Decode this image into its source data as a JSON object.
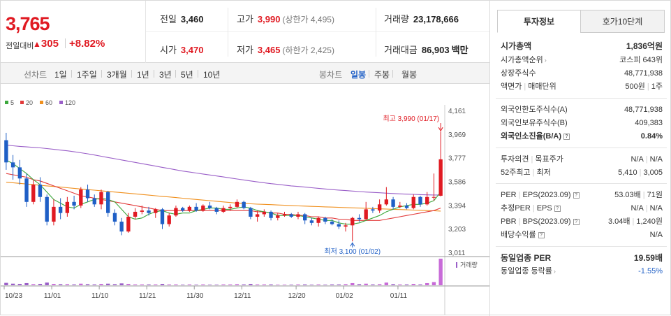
{
  "summary": {
    "current_price": "3,765",
    "change_label": "전일대비",
    "change_arrow": "▲",
    "change_value": "305",
    "change_pct": "+8.82%",
    "prev_close_label": "전일",
    "prev_close": "3,460",
    "high_label": "고가",
    "high": "3,990",
    "upper_limit": "(상한가 4,495)",
    "volume_label": "거래량",
    "volume": "23,178,666",
    "open_label": "시가",
    "open": "3,470",
    "low_label": "저가",
    "low": "3,465",
    "lower_limit": "(하한가 2,425)",
    "amount_label": "거래대금",
    "amount": "86,903",
    "amount_unit": "백만"
  },
  "toolbar": {
    "line_label": "선차트",
    "line_ranges": [
      "1일",
      "1주일",
      "3개월",
      "1년",
      "3년",
      "5년",
      "10년"
    ],
    "candle_label": "봉차트",
    "candle_ranges": [
      "일봉",
      "주봉",
      "월봉"
    ],
    "active_candle": "일봉"
  },
  "colors": {
    "up": "#e01a22",
    "down": "#1f5fc6",
    "ma5": "#3ca83c",
    "ma20": "#e23a3a",
    "ma60": "#f0901e",
    "ma120": "#9a5fc8"
  },
  "chart_data": {
    "type": "candlestick",
    "legend": [
      {
        "name": "5",
        "color": "#3ca83c"
      },
      {
        "name": "20",
        "color": "#e23a3a"
      },
      {
        "name": "60",
        "color": "#f0901e"
      },
      {
        "name": "120",
        "color": "#9a5fc8"
      }
    ],
    "y_ticks": [
      "4,161",
      "3,969",
      "3,777",
      "3,586",
      "3,394",
      "3,203",
      "3,011"
    ],
    "ylim": [
      3011,
      4161
    ],
    "x_ticks": [
      "10/23",
      "11/01",
      "11/10",
      "11/21",
      "11/30",
      "12/11",
      "12/20",
      "01/02",
      "01/11"
    ],
    "x_tick_index": [
      0,
      7,
      14,
      21,
      28,
      35,
      43,
      50,
      58
    ],
    "high_annotation": "최고 3,990 (01/17)",
    "low_annotation": "최저 3,100 (01/02)",
    "volume_label": "거래량",
    "candles": [
      {
        "o": 3920,
        "h": 3980,
        "l": 3680,
        "c": 3740
      },
      {
        "o": 3740,
        "h": 3800,
        "l": 3600,
        "c": 3700
      },
      {
        "o": 3700,
        "h": 3760,
        "l": 3560,
        "c": 3610
      },
      {
        "o": 3610,
        "h": 3650,
        "l": 3380,
        "c": 3420
      },
      {
        "o": 3420,
        "h": 3600,
        "l": 3400,
        "c": 3560
      },
      {
        "o": 3560,
        "h": 3620,
        "l": 3420,
        "c": 3460
      },
      {
        "o": 3460,
        "h": 3480,
        "l": 3230,
        "c": 3260
      },
      {
        "o": 3260,
        "h": 3440,
        "l": 3230,
        "c": 3380
      },
      {
        "o": 3380,
        "h": 3450,
        "l": 3280,
        "c": 3330
      },
      {
        "o": 3330,
        "h": 3460,
        "l": 3300,
        "c": 3420
      },
      {
        "o": 3420,
        "h": 3470,
        "l": 3360,
        "c": 3390
      },
      {
        "o": 3390,
        "h": 3540,
        "l": 3370,
        "c": 3520
      },
      {
        "o": 3520,
        "h": 3560,
        "l": 3420,
        "c": 3450
      },
      {
        "o": 3450,
        "h": 3480,
        "l": 3380,
        "c": 3400
      },
      {
        "o": 3400,
        "h": 3520,
        "l": 3360,
        "c": 3500
      },
      {
        "o": 3500,
        "h": 3510,
        "l": 3300,
        "c": 3330
      },
      {
        "o": 3330,
        "h": 3360,
        "l": 3230,
        "c": 3260
      },
      {
        "o": 3260,
        "h": 3290,
        "l": 3150,
        "c": 3180
      },
      {
        "o": 3180,
        "h": 3330,
        "l": 3170,
        "c": 3300
      },
      {
        "o": 3300,
        "h": 3370,
        "l": 3280,
        "c": 3340
      },
      {
        "o": 3340,
        "h": 3390,
        "l": 3320,
        "c": 3350
      },
      {
        "o": 3350,
        "h": 3380,
        "l": 3310,
        "c": 3330
      },
      {
        "o": 3330,
        "h": 3370,
        "l": 3290,
        "c": 3360
      },
      {
        "o": 3360,
        "h": 3370,
        "l": 3200,
        "c": 3240
      },
      {
        "o": 3240,
        "h": 3330,
        "l": 3220,
        "c": 3310
      },
      {
        "o": 3310,
        "h": 3390,
        "l": 3300,
        "c": 3370
      },
      {
        "o": 3370,
        "h": 3380,
        "l": 3340,
        "c": 3350
      },
      {
        "o": 3350,
        "h": 3390,
        "l": 3340,
        "c": 3380
      },
      {
        "o": 3380,
        "h": 3410,
        "l": 3340,
        "c": 3350
      },
      {
        "o": 3350,
        "h": 3400,
        "l": 3340,
        "c": 3390
      },
      {
        "o": 3390,
        "h": 3420,
        "l": 3360,
        "c": 3370
      },
      {
        "o": 3370,
        "h": 3380,
        "l": 3320,
        "c": 3340
      },
      {
        "o": 3340,
        "h": 3390,
        "l": 3330,
        "c": 3370
      },
      {
        "o": 3370,
        "h": 3400,
        "l": 3350,
        "c": 3380
      },
      {
        "o": 3380,
        "h": 3440,
        "l": 3370,
        "c": 3420
      },
      {
        "o": 3420,
        "h": 3430,
        "l": 3360,
        "c": 3370
      },
      {
        "o": 3370,
        "h": 3380,
        "l": 3280,
        "c": 3300
      },
      {
        "o": 3300,
        "h": 3350,
        "l": 3260,
        "c": 3320
      },
      {
        "o": 3320,
        "h": 3360,
        "l": 3300,
        "c": 3340
      },
      {
        "o": 3340,
        "h": 3350,
        "l": 3270,
        "c": 3290
      },
      {
        "o": 3290,
        "h": 3330,
        "l": 3270,
        "c": 3310
      },
      {
        "o": 3310,
        "h": 3340,
        "l": 3300,
        "c": 3320
      },
      {
        "o": 3320,
        "h": 3330,
        "l": 3290,
        "c": 3300
      },
      {
        "o": 3300,
        "h": 3340,
        "l": 3280,
        "c": 3320
      },
      {
        "o": 3320,
        "h": 3330,
        "l": 3240,
        "c": 3270
      },
      {
        "o": 3270,
        "h": 3290,
        "l": 3230,
        "c": 3250
      },
      {
        "o": 3250,
        "h": 3300,
        "l": 3220,
        "c": 3290
      },
      {
        "o": 3290,
        "h": 3300,
        "l": 3240,
        "c": 3260
      },
      {
        "o": 3260,
        "h": 3280,
        "l": 3230,
        "c": 3240
      },
      {
        "o": 3240,
        "h": 3270,
        "l": 3200,
        "c": 3220
      },
      {
        "o": 3220,
        "h": 3250,
        "l": 3180,
        "c": 3230
      },
      {
        "o": 3230,
        "h": 3300,
        "l": 3100,
        "c": 3290
      },
      {
        "o": 3290,
        "h": 3320,
        "l": 3260,
        "c": 3280
      },
      {
        "o": 3280,
        "h": 3420,
        "l": 3270,
        "c": 3360
      },
      {
        "o": 3360,
        "h": 3380,
        "l": 3330,
        "c": 3350
      },
      {
        "o": 3350,
        "h": 3440,
        "l": 3330,
        "c": 3400
      },
      {
        "o": 3400,
        "h": 3540,
        "l": 3390,
        "c": 3440
      },
      {
        "o": 3440,
        "h": 3460,
        "l": 3360,
        "c": 3380
      },
      {
        "o": 3380,
        "h": 3420,
        "l": 3370,
        "c": 3390
      },
      {
        "o": 3390,
        "h": 3410,
        "l": 3360,
        "c": 3370
      },
      {
        "o": 3370,
        "h": 3480,
        "l": 3360,
        "c": 3460
      },
      {
        "o": 3460,
        "h": 3470,
        "l": 3380,
        "c": 3400
      },
      {
        "o": 3400,
        "h": 3500,
        "l": 3390,
        "c": 3460
      },
      {
        "o": 3460,
        "h": 3650,
        "l": 3430,
        "c": 3460
      },
      {
        "o": 3470,
        "h": 3990,
        "l": 3465,
        "c": 3765
      }
    ],
    "volumes": [
      9,
      6,
      5,
      8,
      4,
      5,
      10,
      5,
      4,
      4,
      3,
      6,
      4,
      3,
      5,
      6,
      4,
      7,
      5,
      3,
      3,
      3,
      3,
      5,
      3,
      3,
      2,
      3,
      2,
      3,
      2,
      2,
      3,
      3,
      4,
      3,
      5,
      3,
      3,
      3,
      2,
      2,
      2,
      3,
      3,
      2,
      3,
      2,
      3,
      3,
      4,
      8,
      4,
      6,
      3,
      4,
      10,
      4,
      3,
      3,
      5,
      3,
      8,
      12,
      100
    ],
    "ma5": [
      3760,
      3730,
      3690,
      3650,
      3600,
      3560,
      3500,
      3440,
      3410,
      3380,
      3370,
      3400,
      3420,
      3440,
      3450,
      3440,
      3420,
      3360,
      3300,
      3280,
      3290,
      3320,
      3340,
      3350,
      3330,
      3320,
      3330,
      3330,
      3350,
      3360,
      3370,
      3370,
      3360,
      3360,
      3370,
      3380,
      3370,
      3350,
      3340,
      3330,
      3310,
      3310,
      3310,
      3310,
      3300,
      3290,
      3280,
      3270,
      3270,
      3250,
      3240,
      3240,
      3250,
      3270,
      3290,
      3310,
      3340,
      3360,
      3380,
      3390,
      3400,
      3400,
      3410,
      3430,
      3500
    ],
    "ma20": [
      3650,
      3640,
      3630,
      3620,
      3600,
      3590,
      3570,
      3550,
      3530,
      3510,
      3490,
      3470,
      3460,
      3450,
      3440,
      3430,
      3420,
      3410,
      3400,
      3390,
      3380,
      3370,
      3360,
      3350,
      3350,
      3350,
      3350,
      3350,
      3350,
      3350,
      3350,
      3350,
      3350,
      3350,
      3350,
      3350,
      3350,
      3340,
      3340,
      3330,
      3330,
      3320,
      3320,
      3310,
      3310,
      3300,
      3300,
      3290,
      3290,
      3280,
      3280,
      3270,
      3270,
      3270,
      3270,
      3270,
      3280,
      3290,
      3300,
      3310,
      3320,
      3330,
      3340,
      3350,
      3370
    ],
    "ma60": [
      3580,
      3575,
      3570,
      3565,
      3560,
      3555,
      3550,
      3545,
      3540,
      3535,
      3530,
      3525,
      3520,
      3515,
      3510,
      3505,
      3500,
      3495,
      3490,
      3485,
      3480,
      3475,
      3470,
      3465,
      3460,
      3455,
      3450,
      3445,
      3440,
      3435,
      3430,
      3425,
      3420,
      3415,
      3410,
      3408,
      3405,
      3402,
      3400,
      3398,
      3395,
      3393,
      3390,
      3388,
      3386,
      3384,
      3382,
      3380,
      3378,
      3376,
      3374,
      3372,
      3370,
      3368,
      3366,
      3364,
      3362,
      3360,
      3358,
      3356,
      3354,
      3352,
      3350,
      3348,
      3346
    ],
    "ma120": [
      3880,
      3875,
      3870,
      3866,
      3862,
      3858,
      3852,
      3846,
      3840,
      3834,
      3826,
      3818,
      3810,
      3800,
      3790,
      3780,
      3770,
      3760,
      3750,
      3740,
      3730,
      3720,
      3710,
      3700,
      3690,
      3680,
      3670,
      3662,
      3654,
      3646,
      3638,
      3630,
      3622,
      3614,
      3606,
      3598,
      3590,
      3582,
      3575,
      3568,
      3562,
      3556,
      3550,
      3545,
      3540,
      3535,
      3530,
      3525,
      3520,
      3516,
      3512,
      3508,
      3504,
      3500,
      3497,
      3494,
      3491,
      3488,
      3485,
      3483,
      3481,
      3479,
      3477,
      3476,
      3476
    ]
  },
  "panel": {
    "tab_invest": "투자정보",
    "tab_orderbook": "호가10단계",
    "market_cap_label": "시가총액",
    "market_cap": "1,836억원",
    "cap_rank_label": "시가총액순위",
    "cap_rank": "코스피 643위",
    "shares_label": "상장주식수",
    "shares": "48,771,938",
    "par_label": "액면가",
    "unit_label": "매매단위",
    "par": "500원",
    "unit": "1주",
    "foreign_limit_label": "외국인한도주식수(A)",
    "foreign_limit": "48,771,938",
    "foreign_hold_label": "외국인보유주식수(B)",
    "foreign_hold": "409,383",
    "foreign_ratio_label": "외국인소진율(B/A)",
    "foreign_ratio": "0.84%",
    "opinion_label": "투자의견",
    "target_label": "목표주가",
    "opinion": "N/A",
    "target": "N/A",
    "w52_high_label": "52주최고",
    "w52_low_label": "최저",
    "w52_high": "5,410",
    "w52_low": "3,005",
    "per_label": "PER",
    "eps_label": "EPS(2023.09)",
    "per": "53.03배",
    "eps": "71원",
    "est_per_label": "추정PER",
    "est_eps_label": "EPS",
    "est_per": "N/A",
    "est_eps": "N/A",
    "pbr_label": "PBR",
    "bps_label": "BPS(2023.09)",
    "pbr": "3.04배",
    "bps": "1,240원",
    "div_label": "배당수익률",
    "div": "N/A",
    "sector_per_label": "동일업종 PER",
    "sector_per": "19.59배",
    "sector_chg_label": "동일업종 등락률",
    "sector_chg": "-1.55%"
  }
}
